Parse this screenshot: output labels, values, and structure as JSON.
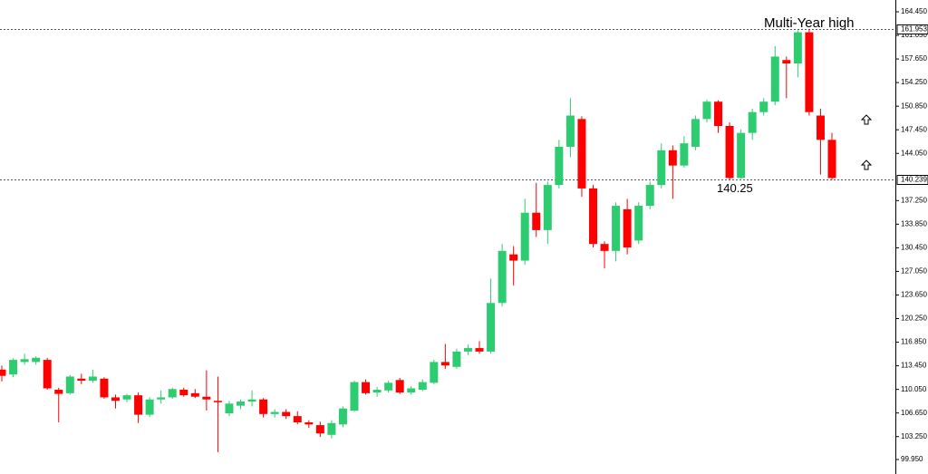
{
  "chart_data": {
    "type": "candlestick",
    "up_color": "#2ecc71",
    "down_color": "#ff0000",
    "open": [
      112.9,
      112.2,
      114.0,
      114.0,
      114.3,
      110.0,
      109.5,
      111.6,
      111.3,
      111.6,
      108.9,
      108.6,
      109.2,
      106.4,
      108.6,
      108.9,
      110.0,
      109.5,
      109.0,
      108.4,
      106.6,
      107.7,
      108.3,
      108.6,
      106.5,
      106.8,
      106.2,
      105.3,
      104.9,
      103.5,
      105.0,
      107.0,
      111.1,
      109.6,
      109.9,
      111.4,
      109.6,
      110.0,
      111.0,
      114.0,
      113.3,
      115.5,
      116.0,
      115.5,
      122.5,
      129.5,
      128.6,
      135.5,
      133.0,
      139.5,
      145.0,
      149.0,
      139.0,
      131.0,
      130.0,
      136.0,
      131.5,
      136.5,
      139.5,
      144.5,
      142.3,
      145.0,
      149.0,
      151.5,
      148.0,
      140.5,
      147.0,
      150.0,
      151.5,
      157.5,
      157.0,
      161.5,
      149.5,
      146.0
    ],
    "high": [
      113.5,
      114.5,
      115.2,
      114.8,
      114.6,
      110.3,
      112.1,
      112.3,
      112.9,
      111.8,
      109.3,
      109.4,
      109.6,
      108.9,
      109.9,
      110.3,
      110.3,
      110.1,
      112.8,
      111.9,
      108.4,
      108.6,
      109.9,
      108.8,
      107.2,
      107.2,
      106.9,
      105.6,
      105.4,
      105.6,
      107.6,
      111.3,
      111.5,
      110.4,
      111.3,
      111.7,
      110.5,
      111.5,
      114.3,
      116.6,
      115.9,
      116.5,
      117.0,
      126.0,
      131.0,
      130.7,
      137.5,
      139.8,
      140.0,
      146.0,
      152.0,
      149.4,
      139.5,
      131.4,
      137.0,
      137.5,
      137.0,
      140.0,
      145.5,
      145.2,
      146.5,
      149.5,
      151.8,
      151.7,
      148.5,
      147.5,
      150.5,
      152.0,
      159.5,
      158.0,
      161.8,
      161.953,
      150.5,
      147.0
    ],
    "low": [
      111.2,
      111.8,
      113.6,
      113.6,
      110.0,
      105.3,
      109.3,
      110.8,
      111.0,
      108.7,
      107.3,
      108.2,
      105.2,
      106.1,
      108.0,
      108.7,
      109.0,
      108.8,
      107.0,
      101.0,
      106.2,
      107.2,
      107.6,
      106.0,
      106.0,
      105.8,
      105.0,
      104.5,
      103.2,
      103.0,
      104.6,
      106.8,
      109.3,
      109.0,
      109.6,
      109.4,
      109.3,
      109.8,
      110.8,
      113.0,
      113.0,
      115.0,
      115.2,
      115.2,
      122.0,
      125.0,
      128.0,
      132.0,
      131.0,
      139.0,
      143.5,
      137.8,
      130.5,
      127.5,
      128.5,
      129.5,
      131.0,
      136.0,
      139.0,
      137.5,
      142.0,
      144.5,
      148.5,
      147.0,
      140.25,
      140.4,
      146.0,
      149.5,
      151.0,
      152.0,
      155.0,
      149.5,
      141.0,
      140.239
    ],
    "close": [
      112.0,
      114.3,
      114.4,
      114.6,
      110.2,
      109.4,
      111.9,
      111.3,
      111.9,
      108.9,
      108.4,
      109.2,
      106.4,
      108.6,
      108.9,
      110.1,
      109.2,
      109.0,
      108.6,
      108.2,
      108.0,
      108.3,
      108.6,
      106.5,
      106.8,
      106.2,
      105.3,
      105.0,
      103.7,
      105.2,
      107.3,
      111.1,
      109.5,
      110.0,
      111.0,
      109.6,
      110.2,
      111.1,
      114.0,
      113.5,
      115.5,
      116.0,
      115.5,
      122.5,
      130.0,
      128.6,
      135.5,
      133.0,
      139.5,
      145.0,
      149.5,
      139.0,
      131.0,
      130.0,
      136.5,
      130.5,
      136.5,
      139.5,
      144.5,
      142.3,
      145.5,
      149.0,
      151.5,
      148.0,
      140.5,
      147.0,
      150.0,
      151.5,
      158.0,
      157.0,
      161.5,
      150.0,
      146.0,
      140.5
    ],
    "ylim": [
      99.95,
      164.45
    ],
    "yticks": [
      {
        "value": 99.95,
        "label": "99.950"
      },
      {
        "value": 103.25,
        "label": "103.250"
      },
      {
        "value": 106.65,
        "label": "106.650"
      },
      {
        "value": 110.05,
        "label": "110.050"
      },
      {
        "value": 113.45,
        "label": "113.450"
      },
      {
        "value": 116.85,
        "label": "116.850"
      },
      {
        "value": 120.25,
        "label": "120.250"
      },
      {
        "value": 123.65,
        "label": "123.650"
      },
      {
        "value": 127.05,
        "label": "127.050"
      },
      {
        "value": 130.45,
        "label": "130.450"
      },
      {
        "value": 133.85,
        "label": "133.850"
      },
      {
        "value": 137.25,
        "label": "137.250"
      },
      {
        "value": 144.05,
        "label": "144.050"
      },
      {
        "value": 147.45,
        "label": "147.450"
      },
      {
        "value": 150.85,
        "label": "150.850"
      },
      {
        "value": 154.25,
        "label": "154.250"
      },
      {
        "value": 157.65,
        "label": "157.650"
      },
      {
        "value": 161.05,
        "label": "161.050"
      },
      {
        "value": 164.45,
        "label": "164.450"
      }
    ],
    "hlines": [
      161.953,
      140.239
    ],
    "annotations": [
      "Multi-Year high",
      "140.25"
    ]
  }
}
